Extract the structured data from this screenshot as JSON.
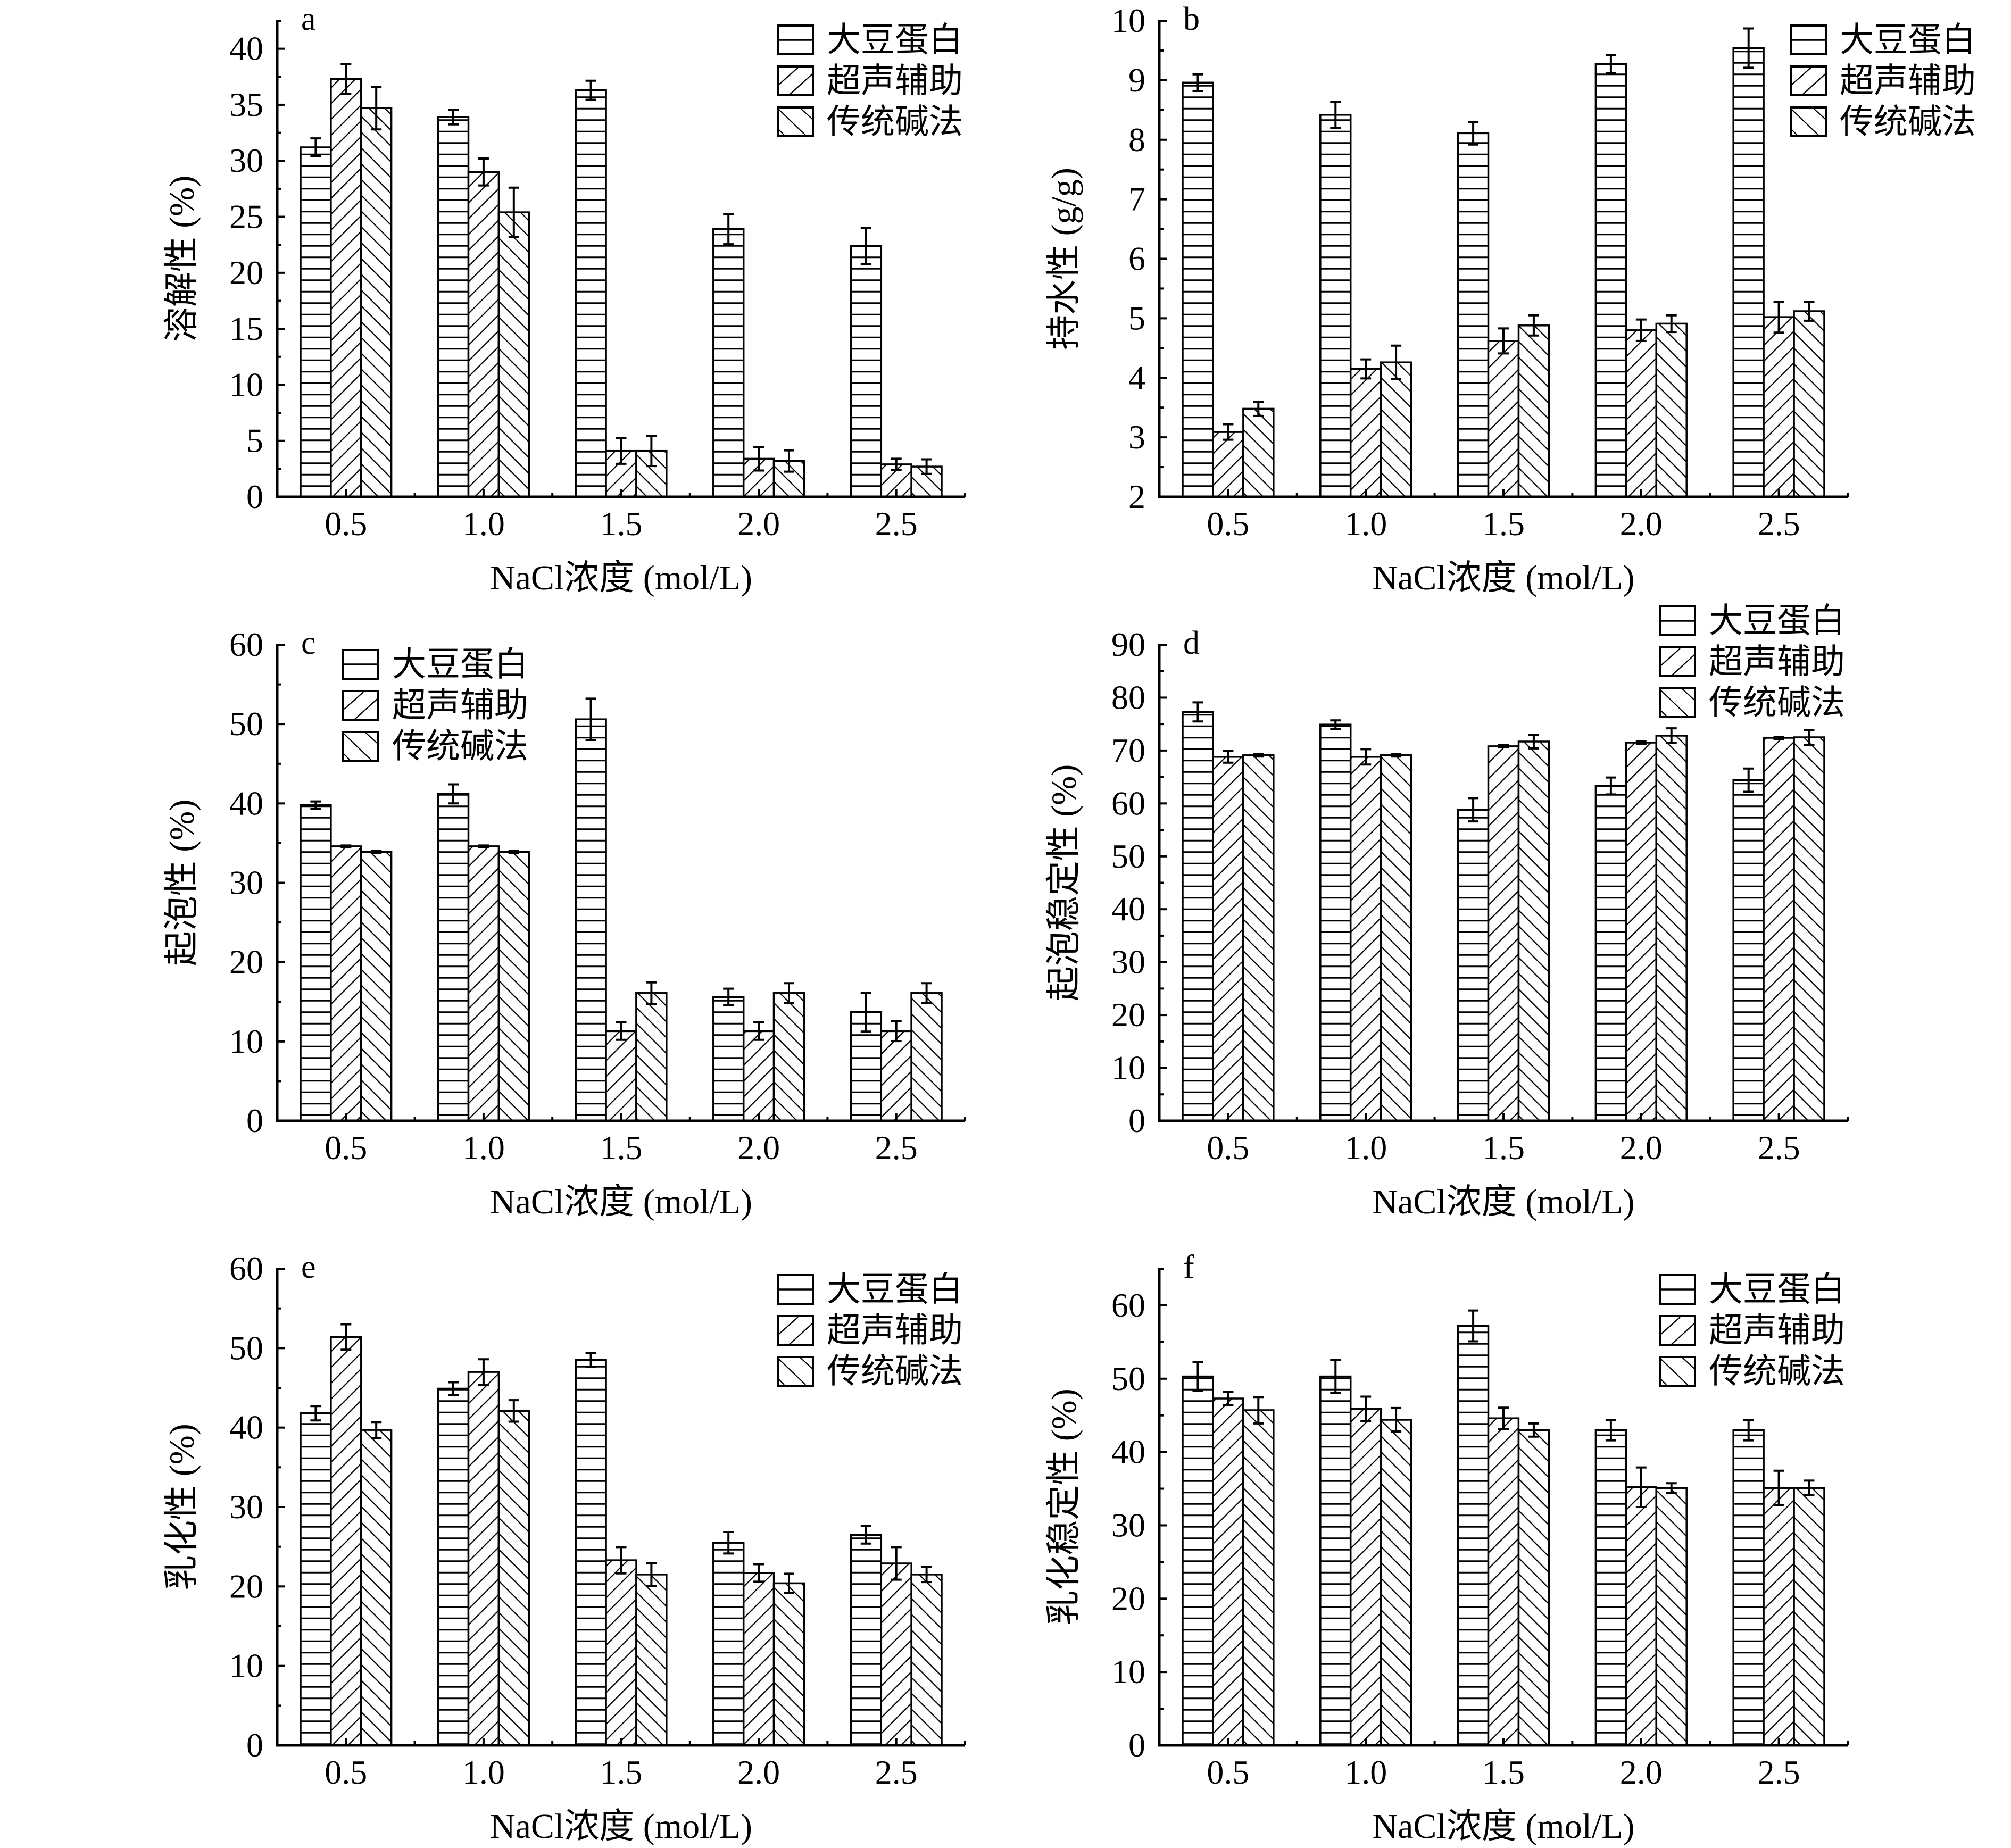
{
  "chart_data": [
    {
      "panel_label": "a",
      "type": "bar",
      "xlabel": "NaCl浓度 (mol/L)",
      "ylabel": "溶解性 (%)",
      "categories": [
        "0.5",
        "1.0",
        "1.5",
        "2.0",
        "2.5"
      ],
      "ylim": [
        0,
        42.5
      ],
      "yticks": [
        0,
        5,
        10,
        15,
        20,
        25,
        30,
        35,
        40
      ],
      "grid": false,
      "legend_position": "top-right",
      "series": [
        {
          "name": "大豆蛋白",
          "values": [
            31.2,
            33.9,
            36.3,
            23.9,
            22.4
          ],
          "errors": [
            0.8,
            0.65,
            0.85,
            1.35,
            1.6
          ]
        },
        {
          "name": "超声辅助",
          "values": [
            37.3,
            29.0,
            4.1,
            3.4,
            2.9
          ],
          "errors": [
            1.35,
            1.2,
            1.15,
            1.05,
            0.5
          ]
        },
        {
          "name": "传统碱法",
          "values": [
            34.7,
            25.4,
            4.1,
            3.2,
            2.7
          ],
          "errors": [
            1.9,
            2.2,
            1.35,
            0.95,
            0.65
          ]
        }
      ]
    },
    {
      "panel_label": "b",
      "type": "bar",
      "xlabel": "NaCl浓度 (mol/L)",
      "ylabel": "持水性 (g/g)",
      "categories": [
        "0.5",
        "1.0",
        "1.5",
        "2.0",
        "2.5"
      ],
      "ylim": [
        2,
        10
      ],
      "yticks": [
        2,
        3,
        4,
        5,
        6,
        7,
        8,
        9,
        10
      ],
      "grid": false,
      "legend_position": "top-right",
      "series": [
        {
          "name": "大豆蛋白",
          "values": [
            8.96,
            8.42,
            8.11,
            9.27,
            9.54
          ],
          "errors": [
            0.14,
            0.22,
            0.19,
            0.15,
            0.33
          ]
        },
        {
          "name": "超声辅助",
          "values": [
            3.09,
            4.15,
            4.62,
            4.8,
            5.02
          ],
          "errors": [
            0.13,
            0.16,
            0.21,
            0.18,
            0.26
          ]
        },
        {
          "name": "传统碱法",
          "values": [
            3.48,
            4.26,
            4.88,
            4.91,
            5.12
          ],
          "errors": [
            0.12,
            0.28,
            0.17,
            0.14,
            0.16
          ]
        }
      ]
    },
    {
      "panel_label": "c",
      "type": "bar",
      "xlabel": "NaCl浓度 (mol/L)",
      "ylabel": "起泡性 (%)",
      "categories": [
        "0.5",
        "1.0",
        "1.5",
        "2.0",
        "2.5"
      ],
      "ylim": [
        0,
        60
      ],
      "yticks": [
        0,
        10,
        20,
        30,
        40,
        50,
        60
      ],
      "grid": false,
      "legend_position": "top-left",
      "series": [
        {
          "name": "大豆蛋白",
          "values": [
            39.8,
            41.2,
            50.6,
            15.6,
            13.7
          ],
          "errors": [
            0.45,
            1.2,
            2.6,
            1.05,
            2.45
          ]
        },
        {
          "name": "超声辅助",
          "values": [
            34.6,
            34.6,
            11.3,
            11.3,
            11.3
          ],
          "errors": [
            0.1,
            0.1,
            1.1,
            1.1,
            1.25
          ]
        },
        {
          "name": "传统碱法",
          "values": [
            33.9,
            33.9,
            16.1,
            16.1,
            16.1
          ],
          "errors": [
            0.15,
            0.15,
            1.35,
            1.25,
            1.25
          ]
        }
      ]
    },
    {
      "panel_label": "d",
      "type": "bar",
      "xlabel": "NaCl浓度 (mol/L)",
      "ylabel": "起泡稳定性 (%)",
      "categories": [
        "0.5",
        "1.0",
        "1.5",
        "2.0",
        "2.5"
      ],
      "ylim": [
        0,
        90
      ],
      "yticks": [
        0,
        10,
        20,
        30,
        40,
        50,
        60,
        70,
        80,
        90
      ],
      "grid": false,
      "legend_position": "top-right",
      "series": [
        {
          "name": "大豆蛋白",
          "values": [
            77.3,
            74.9,
            58.8,
            63.3,
            64.4
          ],
          "errors": [
            1.8,
            0.8,
            2.2,
            1.6,
            2.2
          ]
        },
        {
          "name": "超声辅助",
          "values": [
            68.8,
            68.8,
            70.8,
            71.5,
            72.4
          ],
          "errors": [
            1.1,
            1.45,
            0.2,
            0.2,
            0.2
          ]
        },
        {
          "name": "传统碱法",
          "values": [
            69.1,
            69.1,
            71.7,
            72.8,
            72.5
          ],
          "errors": [
            0.25,
            0.25,
            1.3,
            1.4,
            1.4
          ]
        }
      ]
    },
    {
      "panel_label": "e",
      "type": "bar",
      "xlabel": "NaCl浓度 (mol/L)",
      "ylabel": "乳化性 (%)",
      "categories": [
        "0.5",
        "1.0",
        "1.5",
        "2.0",
        "2.5"
      ],
      "ylim": [
        0,
        60
      ],
      "yticks": [
        0,
        10,
        20,
        30,
        40,
        50,
        60
      ],
      "grid": false,
      "legend_position": "top-right",
      "series": [
        {
          "name": "大豆蛋白",
          "values": [
            41.8,
            44.9,
            48.5,
            25.5,
            26.5
          ],
          "errors": [
            0.9,
            0.8,
            0.85,
            1.35,
            1.1
          ]
        },
        {
          "name": "超声辅助",
          "values": [
            51.4,
            47.0,
            23.3,
            21.7,
            22.9
          ],
          "errors": [
            1.6,
            1.6,
            1.65,
            1.1,
            2.05
          ]
        },
        {
          "name": "传统碱法",
          "values": [
            39.7,
            42.1,
            21.5,
            20.4,
            21.5
          ],
          "errors": [
            1.0,
            1.35,
            1.45,
            1.2,
            0.95
          ]
        }
      ]
    },
    {
      "panel_label": "f",
      "type": "bar",
      "xlabel": "NaCl浓度 (mol/L)",
      "ylabel": "乳化稳定性 (%)",
      "categories": [
        "0.5",
        "1.0",
        "1.5",
        "2.0",
        "2.5"
      ],
      "ylim": [
        0,
        65
      ],
      "yticks": [
        0,
        10,
        20,
        30,
        40,
        50,
        60
      ],
      "grid": false,
      "legend_position": "top-right",
      "series": [
        {
          "name": "大豆蛋白",
          "values": [
            50.3,
            50.3,
            57.2,
            43.0,
            43.0
          ],
          "errors": [
            1.95,
            2.25,
            2.1,
            1.4,
            1.4
          ]
        },
        {
          "name": "超声辅助",
          "values": [
            47.3,
            45.9,
            44.6,
            35.2,
            35.1
          ],
          "errors": [
            0.9,
            1.65,
            1.45,
            2.7,
            2.35
          ]
        },
        {
          "name": "传统碱法",
          "values": [
            45.7,
            44.4,
            43.0,
            35.1,
            35.1
          ],
          "errors": [
            1.8,
            1.6,
            0.9,
            0.65,
            1.0
          ]
        }
      ]
    }
  ]
}
